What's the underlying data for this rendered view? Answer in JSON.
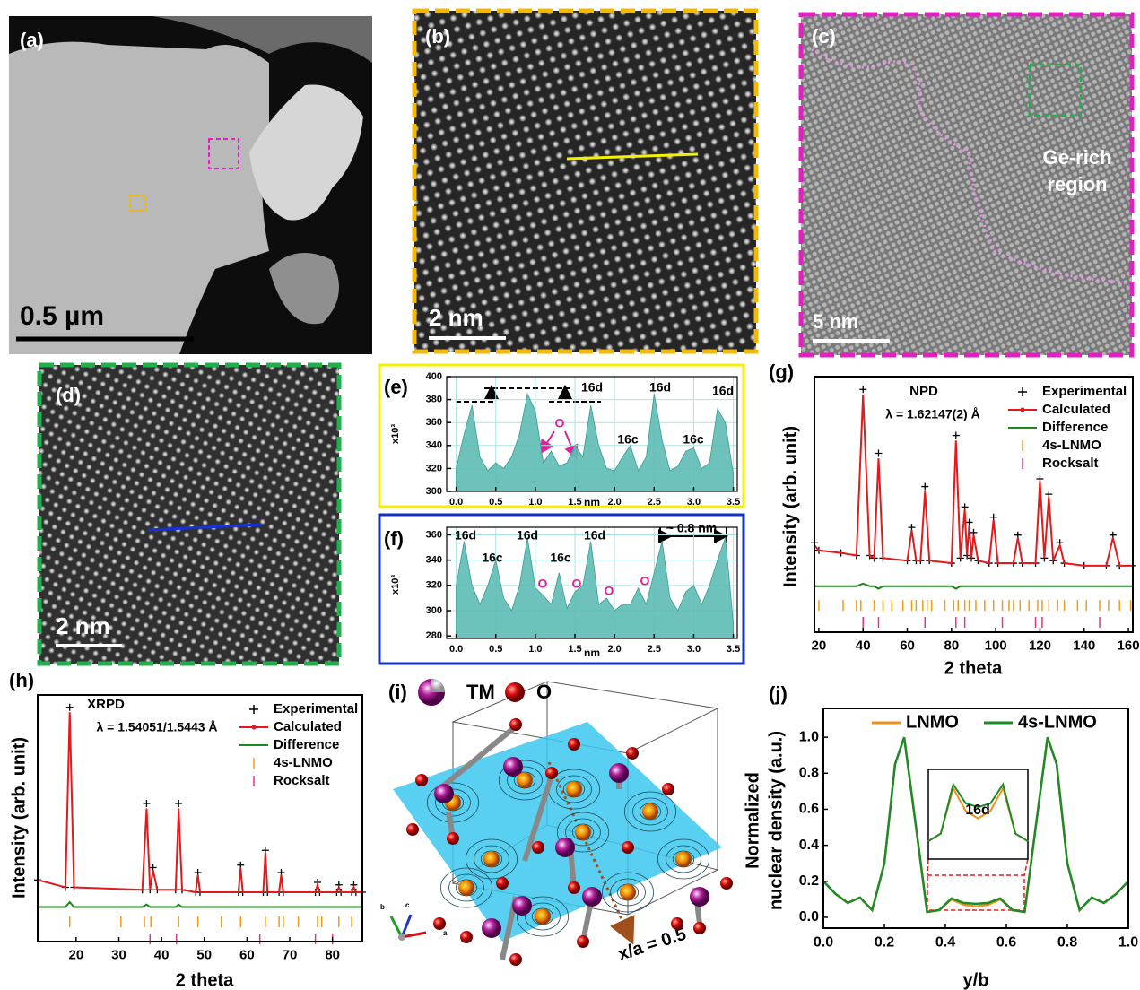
{
  "images": [
    {
      "label": "(a)",
      "scale_bar": "0.5 µm"
    },
    {
      "label": "(b)",
      "scale_bar": "2 nm"
    },
    {
      "label": "(c)",
      "scale_bar": "5 nm",
      "annotation": [
        "Ge-rich",
        "region"
      ]
    },
    {
      "label": "(d)",
      "scale_bar": "2 nm"
    }
  ],
  "structure": {
    "label": "(i)",
    "legend": [
      "TM",
      "O"
    ],
    "plane_label": "x/a = 0.5",
    "axes": [
      "a",
      "b",
      "c"
    ]
  },
  "chart_data": [
    {
      "type": "area",
      "label": "(e)",
      "color": "#5dbcb4",
      "grid": true,
      "xlabel": "nm",
      "ylabel": [
        "x10³"
      ],
      "x": [
        0,
        0.1,
        0.2,
        0.3,
        0.4,
        0.5,
        0.6,
        0.7,
        0.8,
        0.9,
        1.0,
        1.1,
        1.2,
        1.3,
        1.4,
        1.5,
        1.6,
        1.7,
        1.8,
        1.9,
        2.0,
        2.1,
        2.2,
        2.3,
        2.4,
        2.5,
        2.6,
        2.7,
        2.8,
        2.9,
        3.0,
        3.1,
        3.2,
        3.3,
        3.4,
        3.5
      ],
      "values": [
        320,
        350,
        375,
        330,
        318,
        325,
        320,
        330,
        350,
        385,
        370,
        325,
        335,
        322,
        325,
        340,
        330,
        375,
        340,
        320,
        318,
        330,
        340,
        318,
        330,
        385,
        345,
        318,
        322,
        335,
        338,
        320,
        325,
        372,
        360,
        315
      ],
      "xlim": [
        -0.12,
        3.55
      ],
      "ylim": [
        300,
        400
      ],
      "xticks": [
        {
          "value": 0,
          "label": "0.0"
        },
        0.5,
        {
          "value": 1,
          "label": "1.0"
        },
        1.5,
        {
          "value": 2,
          "label": "2.0"
        },
        2.5,
        {
          "value": 3,
          "label": "3.0"
        },
        3.5
      ],
      "yticks": [
        300,
        320,
        340,
        360,
        380,
        400
      ],
      "annotations": [
        "16d",
        "16d",
        "16d",
        "16c",
        "16c",
        "O"
      ]
    },
    {
      "type": "area",
      "label": "(f)",
      "color": "#5dbcb4",
      "grid": true,
      "xlabel": "nm",
      "ylabel": [
        "x10³"
      ],
      "x": [
        0,
        0.1,
        0.2,
        0.3,
        0.4,
        0.5,
        0.6,
        0.7,
        0.8,
        0.9,
        1.0,
        1.1,
        1.2,
        1.3,
        1.4,
        1.5,
        1.6,
        1.7,
        1.8,
        1.9,
        2.0,
        2.1,
        2.2,
        2.3,
        2.4,
        2.5,
        2.6,
        2.7,
        2.8,
        2.9,
        3.0,
        3.1,
        3.2,
        3.3,
        3.4,
        3.5
      ],
      "values": [
        320,
        355,
        320,
        305,
        320,
        340,
        310,
        300,
        320,
        358,
        318,
        312,
        305,
        330,
        302,
        315,
        320,
        355,
        305,
        310,
        300,
        305,
        305,
        318,
        305,
        330,
        355,
        310,
        300,
        315,
        320,
        305,
        320,
        340,
        358,
        290
      ],
      "xlim": [
        -0.12,
        3.55
      ],
      "ylim": [
        278,
        366
      ],
      "xticks": [
        {
          "value": 0,
          "label": "0.0"
        },
        0.5,
        {
          "value": 1,
          "label": "1.0"
        },
        1.5,
        {
          "value": 2,
          "label": "2.0"
        },
        2.5,
        {
          "value": 3,
          "label": "3.0"
        },
        3.5
      ],
      "yticks": [
        280,
        300,
        320,
        340,
        360
      ],
      "annotations": [
        "16d",
        "16d",
        "16d",
        "16c",
        "16c",
        "O",
        "O",
        "O",
        "O",
        "~ 0.8 nm"
      ]
    },
    {
      "type": "diffraction",
      "label": "(g)",
      "title": "NPD",
      "subtitle": "λ = 1.62147(2) Å",
      "xlabel": "2 theta",
      "ylabel": [
        "Intensity (arb. unit)"
      ],
      "xlim": [
        18,
        162
      ],
      "ylim": [
        0,
        100
      ],
      "xticks": [
        20,
        40,
        60,
        80,
        100,
        120,
        140,
        160
      ],
      "x": [
        18,
        20,
        30,
        37,
        40,
        43,
        45,
        47,
        49,
        60,
        62,
        64,
        66,
        68,
        70,
        80,
        82,
        84,
        86,
        87,
        88,
        89,
        90,
        92,
        97,
        99,
        101,
        108,
        110,
        112,
        118,
        120,
        122,
        124,
        126,
        129,
        131,
        140,
        150,
        153,
        156,
        162
      ],
      "series": [
        {
          "name": "Experimental",
          "color": "#000000",
          "marker": "+",
          "values": [
            35,
            32,
            31,
            30,
            95,
            30,
            29,
            70,
            29,
            28,
            41,
            28,
            28,
            57,
            28,
            27,
            77,
            29,
            49,
            30,
            43,
            29,
            39,
            28,
            27,
            45,
            27,
            27,
            38,
            27,
            27,
            60,
            29,
            54,
            28,
            35,
            27,
            26,
            26,
            38,
            26,
            26
          ]
        },
        {
          "name": "Calculated",
          "color": "#e31a1c",
          "marker": "line",
          "values": [
            34,
            32,
            31,
            30,
            93,
            30,
            29,
            68,
            29,
            28,
            40,
            28,
            28,
            55,
            28,
            27,
            75,
            29,
            48,
            30,
            42,
            29,
            38,
            28,
            27,
            44,
            27,
            27,
            37,
            27,
            27,
            59,
            29,
            53,
            28,
            34,
            27,
            26,
            26,
            37,
            26,
            26
          ]
        },
        {
          "name": "Difference",
          "color": "#1a8a1a",
          "marker": "line",
          "values": [
            18,
            18,
            18,
            18,
            19,
            18,
            18,
            17,
            18,
            18,
            18,
            18,
            18,
            18,
            18,
            18,
            17,
            18,
            18,
            18,
            18,
            18,
            18,
            18,
            18,
            18,
            18,
            18,
            18,
            18,
            18,
            18,
            18,
            18,
            18,
            18,
            18,
            18,
            18,
            18,
            18,
            18
          ]
        },
        {
          "name": "4s-LNMO",
          "color": "#f39c12",
          "positions": [
            20,
            31,
            37,
            39,
            45,
            49,
            53,
            58,
            62,
            64,
            67,
            69,
            71,
            77,
            81,
            83,
            86,
            88,
            91,
            95,
            99,
            103,
            106,
            108,
            111,
            115,
            119,
            121,
            124,
            128,
            131,
            137,
            141,
            147,
            151,
            156,
            161
          ]
        },
        {
          "name": "Rocksalt",
          "color": "#e0338a",
          "positions": [
            40,
            47,
            68,
            82,
            86,
            103,
            118,
            121,
            147
          ]
        }
      ]
    },
    {
      "type": "diffraction",
      "label": "(h)",
      "title": "XRPD",
      "subtitle": "λ = 1.54051/1.5443 Å",
      "xlabel": "2 theta",
      "ylabel": [
        "Intensity (arb. unit)"
      ],
      "xlim": [
        11,
        87
      ],
      "ylim": [
        0,
        100
      ],
      "xticks": [
        20,
        30,
        40,
        50,
        60,
        70,
        80
      ],
      "x": [
        11,
        17.5,
        18.5,
        19.5,
        35.5,
        36.5,
        37.3,
        38,
        39,
        43.3,
        44,
        44.8,
        48,
        48.5,
        49,
        58,
        58.5,
        59,
        63.8,
        64.3,
        64.8,
        67.5,
        68,
        68.5,
        76,
        76.5,
        77,
        81,
        81.5,
        82,
        84.5,
        85,
        85.5,
        87
      ],
      "series": [
        {
          "name": "Experimental",
          "color": "#000000",
          "marker": "+",
          "values": [
            25,
            22,
            95,
            22,
            21,
            56,
            21,
            30,
            21,
            21,
            56,
            21,
            20,
            28,
            20,
            20,
            31,
            20,
            20,
            37,
            20,
            20,
            28,
            20,
            20,
            24,
            20,
            20,
            23,
            20,
            20,
            23,
            20,
            20
          ]
        },
        {
          "name": "Calculated",
          "color": "#e31a1c",
          "marker": "line",
          "values": [
            25,
            22,
            93,
            22,
            21,
            54,
            21,
            29,
            21,
            21,
            54,
            21,
            20,
            27,
            20,
            20,
            30,
            20,
            20,
            36,
            20,
            20,
            27,
            20,
            20,
            23,
            20,
            20,
            22,
            20,
            20,
            22,
            20,
            20
          ]
        },
        {
          "name": "Difference",
          "color": "#1a8a1a",
          "marker": "line",
          "values": [
            14,
            14,
            16,
            14,
            14,
            15,
            14,
            14,
            14,
            14,
            15,
            14,
            14,
            14,
            14,
            14,
            14,
            14,
            14,
            14,
            14,
            14,
            14,
            14,
            14,
            14,
            14,
            14,
            14,
            14,
            14,
            14,
            14,
            14
          ]
        },
        {
          "name": "4s-LNMO",
          "color": "#f39c12",
          "positions": [
            18.5,
            30.5,
            36,
            37.5,
            44,
            48.5,
            54,
            58.5,
            64.3,
            67.5,
            68.5,
            72,
            76.5,
            77.5,
            81.5,
            84.5
          ]
        },
        {
          "name": "Rocksalt",
          "color": "#e0338a",
          "positions": [
            37.3,
            43.5,
            63,
            76,
            80
          ]
        }
      ]
    },
    {
      "type": "line",
      "label": "(j)",
      "xlabel": "y/b",
      "ylabel": [
        "Normalized",
        "nuclear density (a.u.)"
      ],
      "xlim": [
        0,
        1
      ],
      "ylim": [
        -0.06,
        1.16
      ],
      "xticks": [
        {
          "value": 0,
          "label": "0.0"
        },
        0.2,
        0.4,
        0.6,
        0.8,
        {
          "value": 1,
          "label": "1.0"
        }
      ],
      "yticks": [
        {
          "value": 0,
          "label": "0.0"
        },
        0.2,
        0.4,
        0.6,
        0.8,
        {
          "value": 1,
          "label": "1.0"
        }
      ],
      "x": [
        0,
        0.04,
        0.08,
        0.12,
        0.16,
        0.2,
        0.235,
        0.265,
        0.3,
        0.34,
        0.38,
        0.42,
        0.46,
        0.5,
        0.54,
        0.58,
        0.62,
        0.66,
        0.7,
        0.735,
        0.765,
        0.8,
        0.84,
        0.88,
        0.92,
        0.96,
        1.0
      ],
      "series": [
        {
          "name": "LNMO",
          "color": "#f0901a",
          "values": [
            0.2,
            0.13,
            0.08,
            0.11,
            0.04,
            0.3,
            0.85,
            1.0,
            0.55,
            0.03,
            0.04,
            0.1,
            0.07,
            0.06,
            0.07,
            0.1,
            0.04,
            0.03,
            0.55,
            1.0,
            0.85,
            0.3,
            0.04,
            0.11,
            0.08,
            0.13,
            0.2
          ]
        },
        {
          "name": "4s-LNMO",
          "color": "#1f8a2a",
          "values": [
            0.2,
            0.13,
            0.08,
            0.11,
            0.04,
            0.3,
            0.85,
            1.0,
            0.55,
            0.03,
            0.04,
            0.105,
            0.08,
            0.075,
            0.08,
            0.105,
            0.04,
            0.03,
            0.55,
            1.0,
            0.85,
            0.3,
            0.04,
            0.11,
            0.08,
            0.13,
            0.2
          ]
        }
      ],
      "annotations": [
        "16d"
      ]
    }
  ]
}
